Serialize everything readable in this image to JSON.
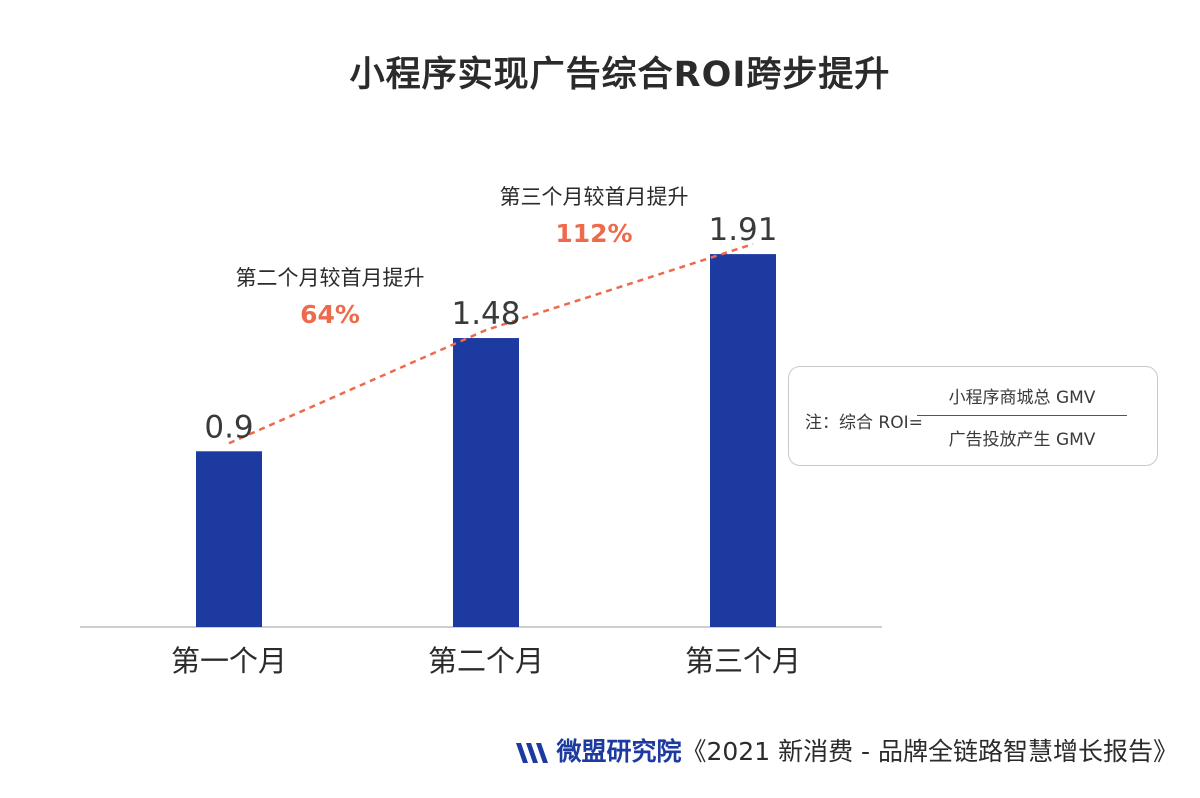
{
  "title": "小程序实现广告综合ROI跨步提升",
  "chart_data": {
    "type": "bar",
    "categories": [
      "第一个月",
      "第二个月",
      "第三个月"
    ],
    "values": [
      0.9,
      1.48,
      1.91
    ],
    "value_labels": [
      "0.9",
      "1.48",
      "1.91"
    ],
    "ylim": [
      0,
      2.1
    ],
    "bar_color": "#1c3aa0",
    "trend_line_color": "#ee6a4c",
    "grid": false,
    "annotations": [
      {
        "text": "第二个月较首月提升",
        "value": "64%"
      },
      {
        "text": "第三个月较首月提升",
        "value": "112%"
      }
    ]
  },
  "note": {
    "label": "注：综合 ROI=",
    "numerator": "小程序商城总 GMV",
    "denominator": "广告投放产生 GMV"
  },
  "footer": {
    "brand": "微盟研究院",
    "source": "《2021 新消费 - 品牌全链路智慧增长报告》",
    "brand_color": "#1c3aa0",
    "logo_icon": "weimob-logo-icon"
  }
}
